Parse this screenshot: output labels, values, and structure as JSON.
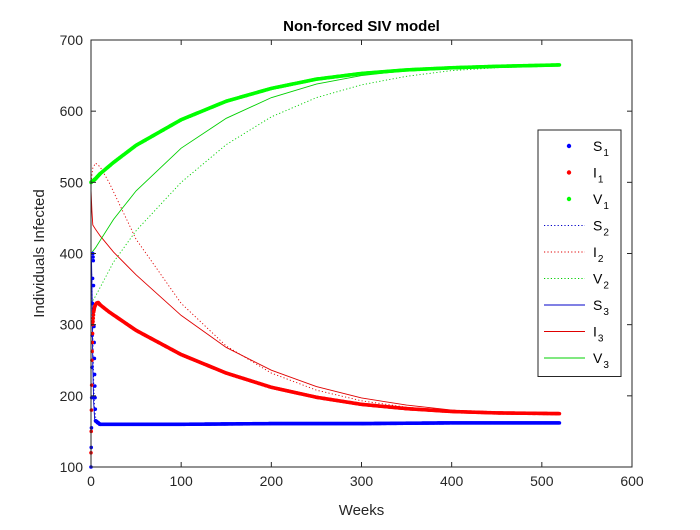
{
  "chart_data": {
    "type": "line",
    "title": "Non-forced SIV model",
    "xlabel": "Weeks",
    "ylabel": "Individuals Infected",
    "xlim": [
      0,
      600
    ],
    "ylim": [
      100,
      700
    ],
    "xticks": [
      0,
      100,
      200,
      300,
      400,
      500,
      600
    ],
    "yticks": [
      100,
      200,
      300,
      400,
      500,
      600,
      700
    ],
    "grid": false,
    "legend_position": "right",
    "colors": {
      "blue": "#0000ff",
      "red": "#ff0000",
      "green": "#00ff00",
      "blue_dark": "#0000c8",
      "red_dark": "#e00000",
      "green_dark": "#00d000"
    },
    "series": [
      {
        "name": "S",
        "sub": "1",
        "style": "dots",
        "color": "blue",
        "x": [
          0,
          0.5,
          1,
          1.5,
          2,
          2.5,
          3,
          4,
          5,
          10,
          50,
          100,
          200,
          300,
          400,
          520
        ],
        "y": [
          100,
          155,
          240,
          330,
          400,
          390,
          320,
          230,
          165,
          160,
          160,
          160,
          161,
          161,
          162,
          162
        ]
      },
      {
        "name": "I",
        "sub": "1",
        "style": "dots",
        "color": "red",
        "x": [
          0,
          0.5,
          1,
          2,
          3,
          4,
          5,
          6,
          8,
          10,
          20,
          50,
          100,
          150,
          200,
          250,
          300,
          350,
          400,
          450,
          520
        ],
        "y": [
          120,
          180,
          250,
          300,
          318,
          325,
          328,
          330,
          331,
          328,
          318,
          292,
          258,
          232,
          212,
          198,
          188,
          182,
          178,
          176,
          175
        ]
      },
      {
        "name": "V",
        "sub": "1",
        "style": "dots",
        "color": "green",
        "x": [
          0,
          5,
          10,
          25,
          50,
          100,
          150,
          200,
          250,
          300,
          350,
          400,
          450,
          520
        ],
        "y": [
          500,
          505,
          512,
          528,
          552,
          588,
          614,
          632,
          645,
          653,
          658,
          661,
          663,
          665
        ]
      },
      {
        "name": "S",
        "sub": "2",
        "style": "dotted",
        "color": "blue_dark",
        "x": [
          0,
          1,
          2,
          3,
          4,
          6,
          10,
          100,
          300,
          520
        ],
        "y": [
          400,
          360,
          290,
          220,
          180,
          163,
          160,
          160,
          161,
          162
        ]
      },
      {
        "name": "I",
        "sub": "2",
        "style": "dotted",
        "color": "red_dark",
        "x": [
          0,
          2,
          5,
          10,
          20,
          50,
          100,
          150,
          200,
          250,
          300,
          350,
          400,
          450,
          520
        ],
        "y": [
          500,
          520,
          527,
          522,
          500,
          420,
          330,
          270,
          232,
          208,
          193,
          184,
          178,
          175,
          174
        ]
      },
      {
        "name": "V",
        "sub": "2",
        "style": "dotted",
        "color": "green_dark",
        "x": [
          0,
          5,
          10,
          25,
          50,
          100,
          150,
          200,
          250,
          300,
          350,
          400,
          450,
          520
        ],
        "y": [
          330,
          340,
          352,
          388,
          432,
          500,
          553,
          592,
          619,
          637,
          649,
          657,
          661,
          664
        ]
      },
      {
        "name": "S",
        "sub": "3",
        "style": "solid",
        "color": "blue_dark",
        "x": [
          0,
          0.5,
          1,
          1.5,
          2,
          3,
          4,
          6,
          10,
          100,
          300,
          520
        ],
        "y": [
          400,
          395,
          360,
          300,
          240,
          190,
          168,
          161,
          160,
          160,
          161,
          162
        ]
      },
      {
        "name": "I",
        "sub": "3",
        "style": "solid",
        "color": "red_dark",
        "x": [
          0,
          1,
          2,
          5,
          10,
          25,
          50,
          100,
          150,
          200,
          250,
          300,
          350,
          400,
          450,
          520
        ],
        "y": [
          490,
          460,
          440,
          434,
          425,
          402,
          370,
          313,
          268,
          236,
          213,
          197,
          187,
          180,
          176,
          174
        ]
      },
      {
        "name": "V",
        "sub": "3",
        "style": "solid",
        "color": "green_dark",
        "x": [
          0,
          5,
          10,
          25,
          50,
          100,
          150,
          200,
          250,
          300,
          350,
          400,
          450,
          520
        ],
        "y": [
          400,
          408,
          418,
          448,
          488,
          548,
          590,
          619,
          638,
          650,
          657,
          661,
          663,
          665
        ]
      }
    ]
  }
}
